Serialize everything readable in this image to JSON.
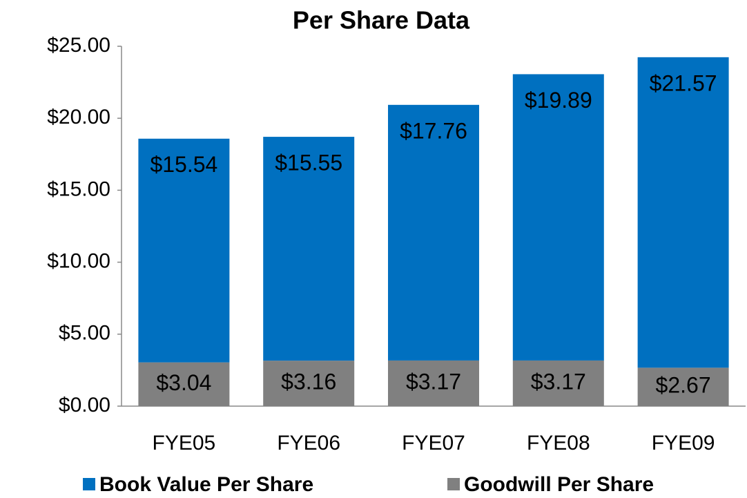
{
  "chart_data": {
    "type": "stacked_bar",
    "title": "Per Share Data",
    "categories": [
      "FYE05",
      "FYE06",
      "FYE07",
      "FYE08",
      "FYE09"
    ],
    "series": [
      {
        "name": "Goodwill Per Share",
        "color": "#808080",
        "values": [
          3.04,
          3.16,
          3.17,
          3.17,
          2.67
        ],
        "value_labels": [
          "$3.04",
          "$3.16",
          "$3.17",
          "$3.17",
          "$2.67"
        ]
      },
      {
        "name": "Book Value Per Share",
        "color": "#0070c0",
        "values": [
          15.54,
          15.55,
          17.76,
          19.89,
          21.57
        ],
        "value_labels": [
          "$15.54",
          "$15.55",
          "$17.76",
          "$19.89",
          "$21.57"
        ]
      }
    ],
    "ylim": [
      0,
      25
    ],
    "yticks": [
      {
        "value": 0,
        "label": "$0.00"
      },
      {
        "value": 5,
        "label": "$5.00"
      },
      {
        "value": 10,
        "label": "$10.00"
      },
      {
        "value": 15,
        "label": "$15.00"
      },
      {
        "value": 20,
        "label": "$20.00"
      },
      {
        "value": 25,
        "label": "$25.00"
      }
    ],
    "grid": false,
    "legend": "bottom"
  }
}
